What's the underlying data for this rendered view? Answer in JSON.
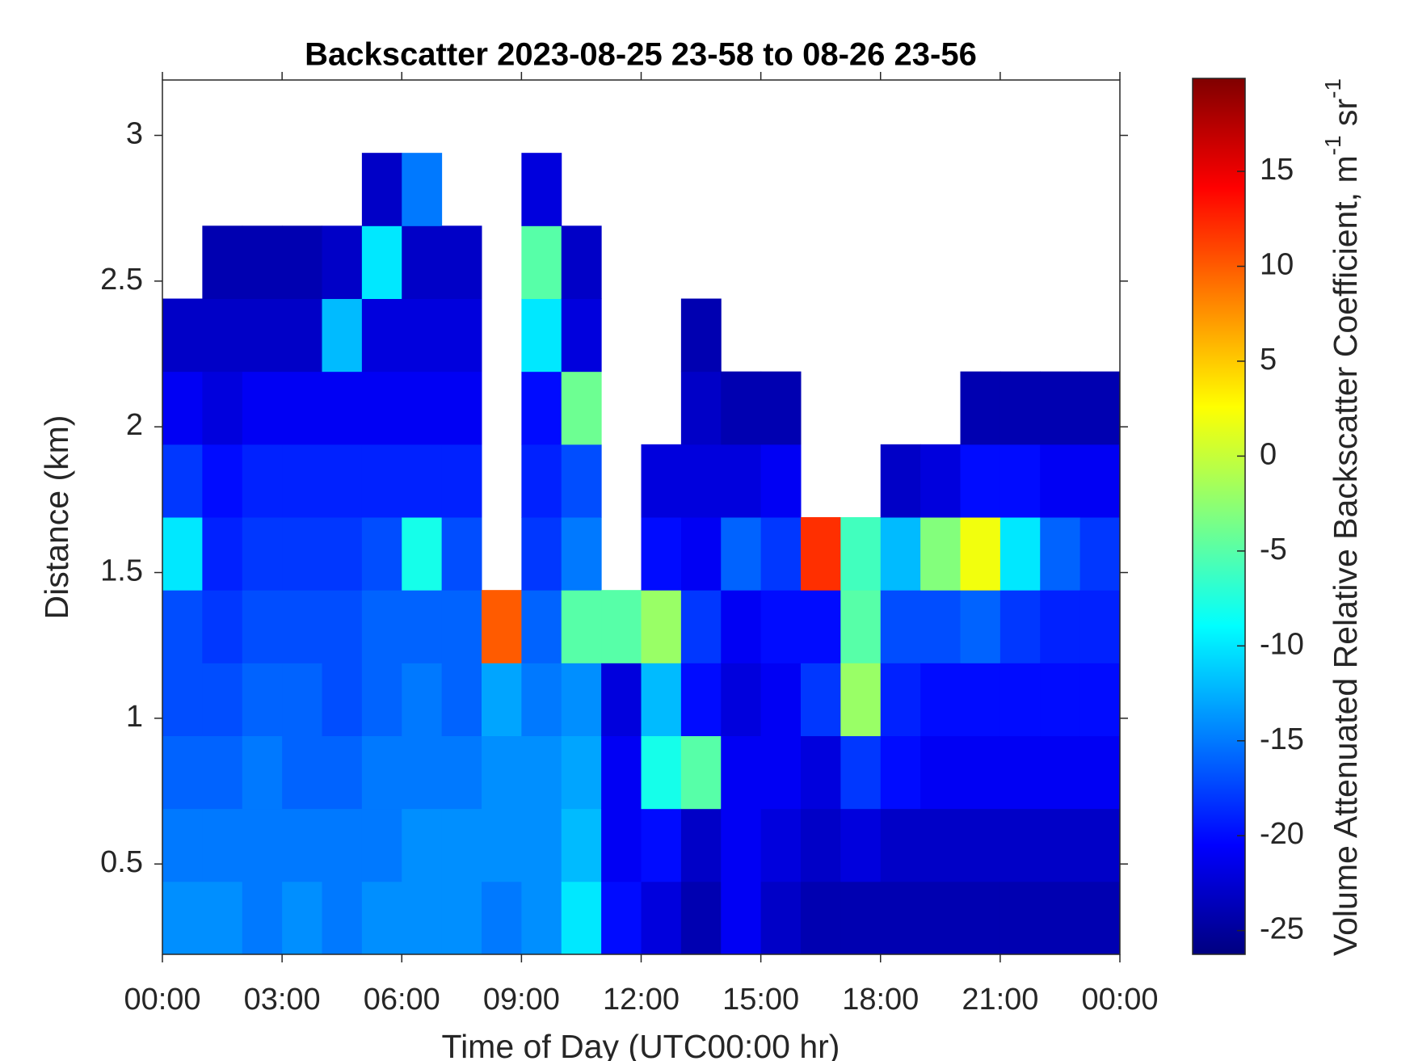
{
  "chart_data": {
    "type": "heatmap",
    "title": "Backscatter 2023-08-25 23-58 to 08-26 23-56",
    "x_label": "Time of Day (UTC00:00 hr)",
    "y_label": "Distance (km)",
    "colorbar_label": [
      "Volume Attenuated Relative Backscatter Coefficient, m",
      "-1",
      " sr",
      "-1"
    ],
    "colormap": "jet",
    "x": [
      0.5,
      1.5,
      2.5,
      3.5,
      4.5,
      5.5,
      6.5,
      7.5,
      8.5,
      9.5,
      10.5,
      11.5,
      12.5,
      13.5,
      14.5,
      15.5,
      16.5,
      17.5,
      18.5,
      19.5,
      20.5,
      21.5,
      22.5,
      23.5
    ],
    "y": [
      0.315,
      0.565,
      0.815,
      1.065,
      1.315,
      1.565,
      1.815,
      2.065,
      2.315,
      2.565,
      2.815,
      3.065
    ],
    "z": [
      [
        -14,
        -15,
        -16,
        -17,
        -17,
        -10,
        -18,
        -21,
        -23,
        null,
        null,
        null
      ],
      [
        -14,
        -15,
        -16,
        -17,
        -18,
        -19,
        -20,
        -22,
        -23,
        -24,
        null,
        null
      ],
      [
        -15,
        -15,
        -15,
        -16,
        -17,
        -18,
        -19,
        -21,
        -23,
        -24,
        null,
        null
      ],
      [
        -14,
        -15,
        -16,
        -16,
        -17,
        -18,
        -19,
        -21,
        -23,
        -24,
        null,
        null
      ],
      [
        -15,
        -15,
        -16,
        -17,
        -17,
        -18,
        -19,
        -21,
        -12,
        -23,
        null,
        null
      ],
      [
        -14,
        -15,
        -15,
        -16,
        -16,
        -17,
        -19,
        -21,
        -22,
        -10,
        -23,
        null
      ],
      [
        -14,
        -14,
        -15,
        -15,
        -16,
        -8,
        -19,
        -21,
        -22,
        -23,
        -15,
        null
      ],
      [
        -14,
        -14,
        -15,
        -16,
        -16,
        -17,
        -19,
        -21,
        -22,
        -23,
        null,
        null
      ],
      [
        -15,
        -14,
        -14,
        -13,
        10,
        null,
        null,
        null,
        null,
        null,
        null,
        null
      ],
      [
        -14,
        -14,
        -14,
        -15,
        -16,
        -18,
        -19,
        -20,
        -10,
        -5,
        -22,
        null
      ],
      [
        -10,
        -12,
        -13,
        -14,
        -5,
        -15,
        -17,
        -4,
        -22,
        -23,
        null,
        null
      ],
      [
        -20,
        -21,
        -21,
        -22,
        -5,
        null,
        null,
        null,
        null,
        null,
        null,
        null
      ],
      [
        -22,
        -20,
        -8,
        -12,
        -2,
        -20,
        -22,
        null,
        null,
        null,
        null,
        null
      ],
      [
        -24,
        -23,
        -5,
        -20,
        -18,
        -21,
        -22,
        -23,
        -24,
        null,
        null,
        null
      ],
      [
        -21,
        -21,
        -21,
        -22,
        -21,
        -16,
        -22,
        -24,
        null,
        null,
        null,
        null
      ],
      [
        -23,
        -22,
        -21,
        -21,
        -20,
        -18,
        -21,
        -24,
        null,
        null,
        null,
        null
      ],
      [
        -24,
        -23,
        -22,
        -18,
        -20,
        12,
        null,
        null,
        null,
        null,
        null,
        null
      ],
      [
        -24,
        -22,
        -18,
        -2,
        -5,
        -6,
        null,
        null,
        null,
        null,
        null,
        null
      ],
      [
        -24,
        -23,
        -20,
        -19,
        -17,
        -12,
        -23,
        null,
        null,
        null,
        null,
        null
      ],
      [
        -24,
        -23,
        -21,
        -20,
        -17,
        -3,
        -22,
        null,
        null,
        null,
        null,
        null
      ],
      [
        -24,
        -23,
        -21,
        -20,
        -16,
        2,
        -20,
        -24,
        null,
        null,
        null,
        null
      ],
      [
        -24,
        -23,
        -21,
        -20,
        -18,
        -10,
        -20,
        -24,
        null,
        null,
        null,
        null
      ],
      [
        -24,
        -23,
        -21,
        -20,
        -19,
        -16,
        -21,
        -24,
        null,
        null,
        null,
        null
      ],
      [
        -24,
        -23,
        -21,
        -20,
        -19,
        -18,
        -21,
        -24,
        null,
        null,
        null,
        null
      ]
    ],
    "xlim": [
      0,
      24
    ],
    "xticks": [
      {
        "value": 0,
        "label": "00:00"
      },
      {
        "value": 3,
        "label": "03:00"
      },
      {
        "value": 6,
        "label": "06:00"
      },
      {
        "value": 9,
        "label": "09:00"
      },
      {
        "value": 12,
        "label": "12:00"
      },
      {
        "value": 15,
        "label": "15:00"
      },
      {
        "value": 18,
        "label": "18:00"
      },
      {
        "value": 21,
        "label": "21:00"
      },
      {
        "value": 24,
        "label": "00:00"
      }
    ],
    "ylim": [
      0.19,
      3.19
    ],
    "yticks": [
      0.5,
      1,
      1.5,
      2,
      2.5,
      3
    ],
    "clim": [
      -26.25,
      19.9
    ],
    "cticks": [
      -25,
      -20,
      -15,
      -10,
      -5,
      0,
      5,
      10,
      15
    ]
  }
}
